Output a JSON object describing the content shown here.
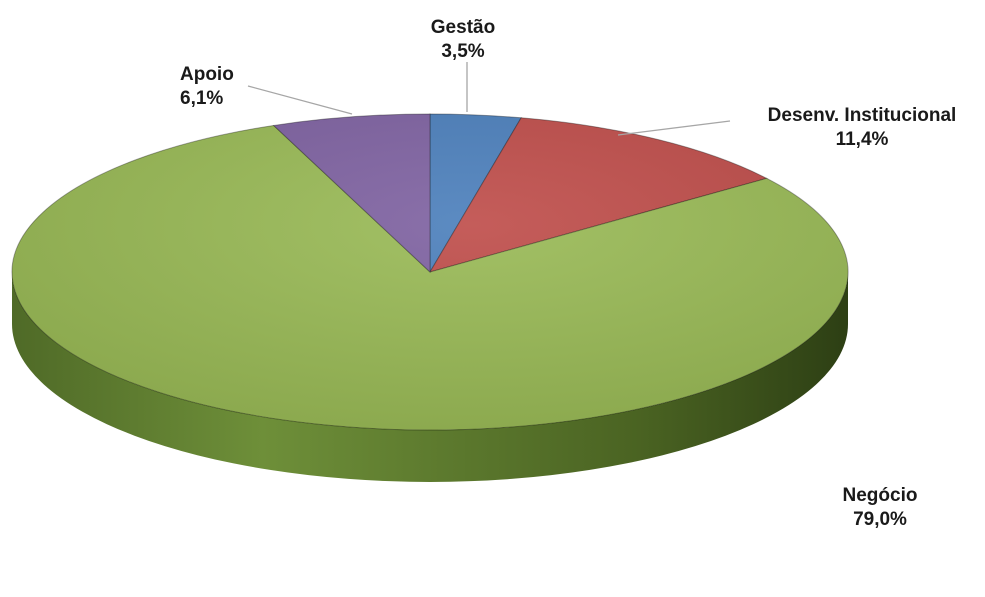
{
  "chart_data": {
    "type": "pie",
    "style": "3d",
    "slices": [
      {
        "label": "Gestão",
        "value": 3.5,
        "value_label": "3,5%",
        "color": "#4a7ebb"
      },
      {
        "label": "Desenv. Institucional",
        "value": 11.4,
        "value_label": "11,4%",
        "color": "#be4b48"
      },
      {
        "label": "Negócio",
        "value": 79.0,
        "value_label": "79,0%",
        "color": "#98b954"
      },
      {
        "label": "Apoio",
        "value": 6.1,
        "value_label": "6,1%",
        "color": "#7d60a0"
      }
    ],
    "start_angle_deg": 0,
    "direction": "clockwise",
    "legend": "none"
  }
}
